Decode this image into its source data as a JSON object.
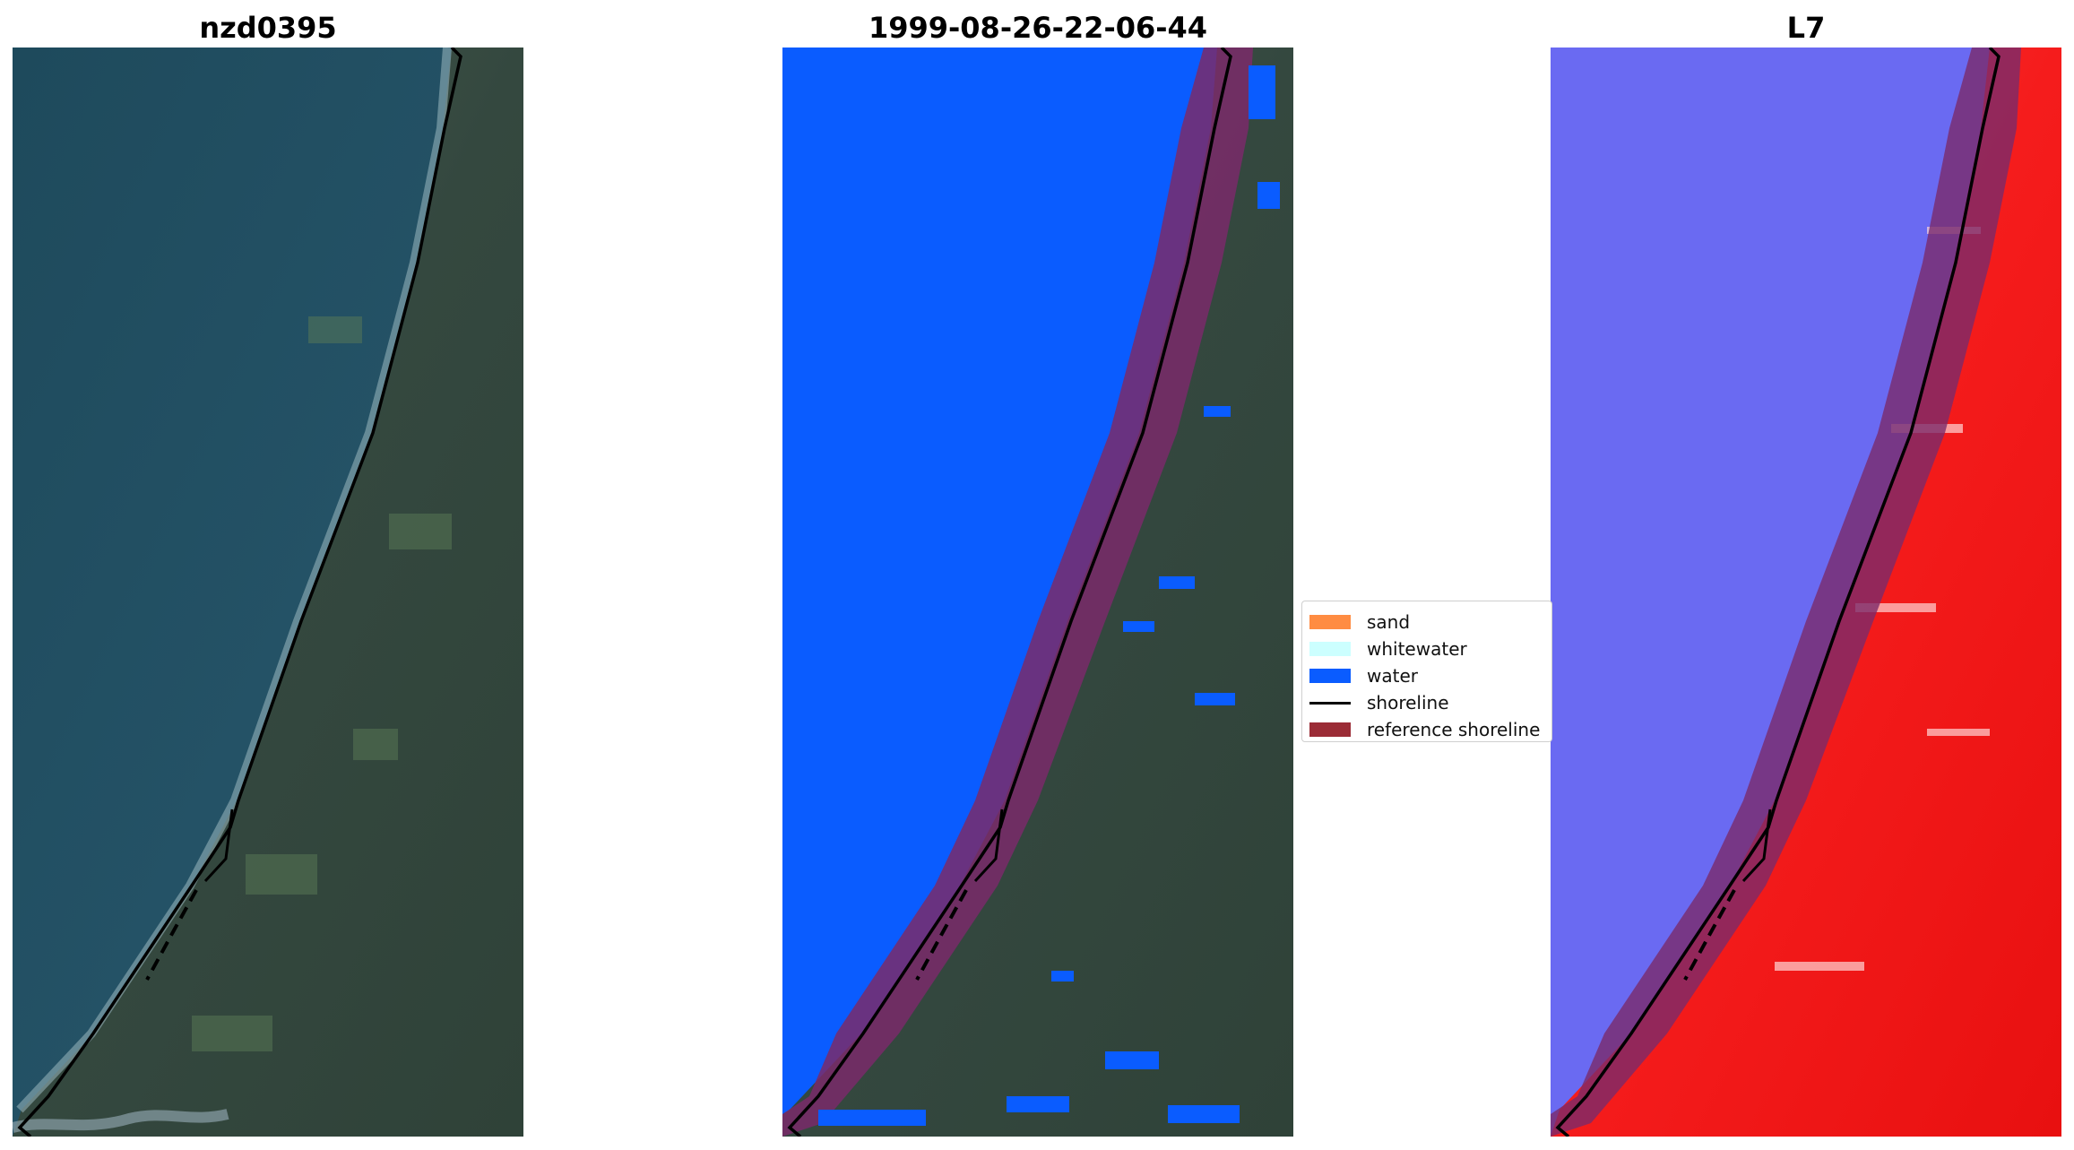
{
  "panels": [
    {
      "title": "nzd0395"
    },
    {
      "title": "1999-08-26-22-06-44"
    },
    {
      "title": "L7"
    }
  ],
  "legend": {
    "items": [
      {
        "label": "sand",
        "color": "#ff8c42",
        "kind": "patch"
      },
      {
        "label": "whitewater",
        "color": "#ccffff",
        "kind": "patch"
      },
      {
        "label": "water",
        "color": "#0a5cff",
        "kind": "patch"
      },
      {
        "label": "shoreline",
        "color": "#000000",
        "kind": "line"
      },
      {
        "label": "reference shoreline",
        "color": "#9b2c36",
        "kind": "patch"
      }
    ]
  },
  "colors": {
    "sea_rgb": "#27556a",
    "land_rgb": "#3b4d48",
    "classified_water": "#0a5cff",
    "buffer_overlay": "#7a2a6a",
    "index_water": "#6a6af2",
    "index_land": "#f21c1c"
  }
}
